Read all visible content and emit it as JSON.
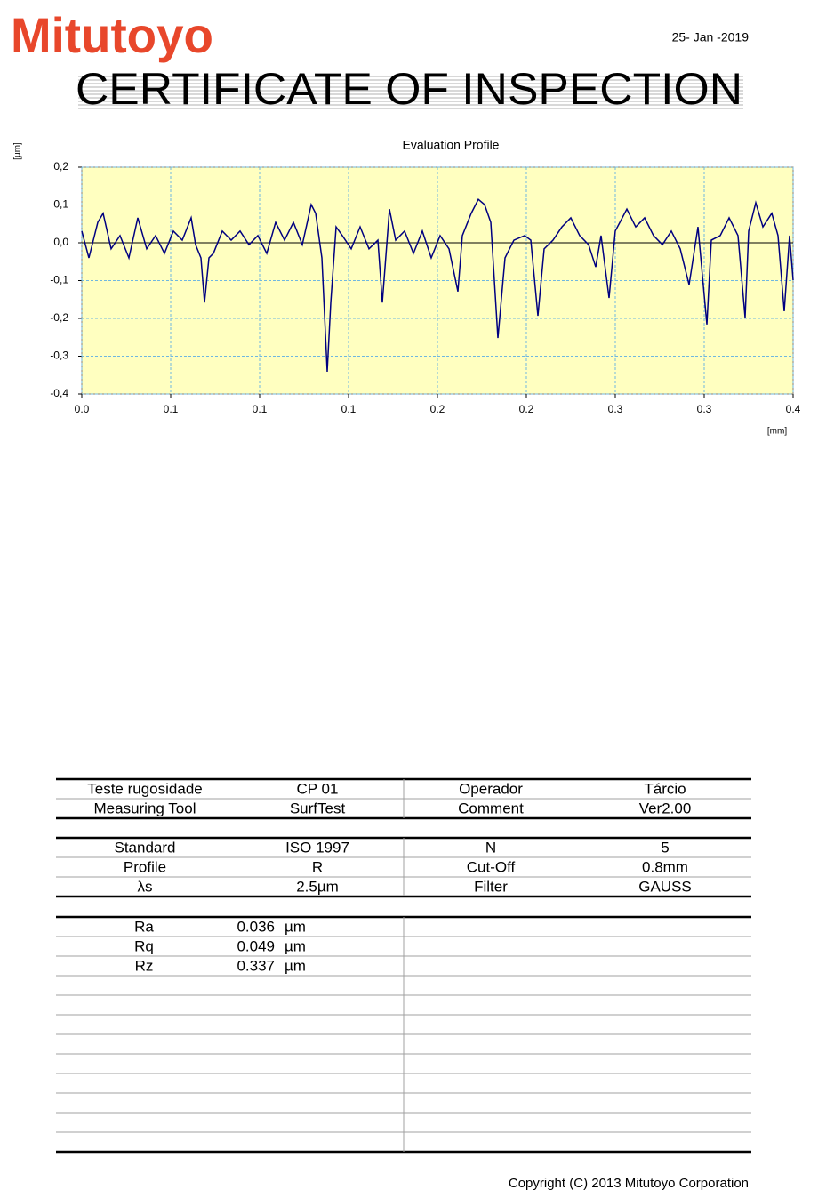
{
  "header": {
    "logo": "Mitutoyo",
    "date": "25- Jan -2019",
    "title": "CERTIFICATE OF INSPECTION"
  },
  "chart_data": {
    "type": "line",
    "title": "Evaluation Profile",
    "y_label": "[µm]",
    "x_label": "[mm]",
    "color": "#000080",
    "background": "#ffffc0",
    "grid": true,
    "xlim": [
      0,
      0.4
    ],
    "ylim": [
      -0.4,
      0.2
    ],
    "xticks": [
      {
        "value": 0,
        "label": "0.0"
      },
      {
        "value": 0.05,
        "label": "0.1"
      },
      0.1,
      {
        "value": 0.15,
        "label": "0.1"
      },
      0.2,
      {
        "value": 0.25,
        "label": "0.2"
      },
      0.3,
      {
        "value": 0.35,
        "label": "0.3"
      },
      0.4
    ],
    "yticks": [
      {
        "value": 0.2,
        "label": "0,2"
      },
      {
        "value": 0.1,
        "label": "0,1"
      },
      {
        "value": 0,
        "label": "0,0"
      },
      {
        "value": -0.1,
        "label": "-0,1"
      },
      {
        "value": -0.2,
        "label": "-0,2"
      },
      {
        "value": -0.3,
        "label": "-0,3"
      },
      {
        "value": -0.4,
        "label": "-0,4"
      }
    ],
    "x": [
      0,
      0.004,
      0.009,
      0.012,
      0.0165,
      0.0215,
      0.0265,
      0.0315,
      0.0365,
      0.0415,
      0.0465,
      0.0515,
      0.0565,
      0.0615,
      0.064,
      0.067,
      0.069,
      0.0715,
      0.074,
      0.079,
      0.084,
      0.089,
      0.094,
      0.099,
      0.104,
      0.109,
      0.114,
      0.119,
      0.124,
      0.129,
      0.1315,
      0.135,
      0.138,
      0.14,
      0.143,
      0.1465,
      0.1515,
      0.1565,
      0.1615,
      0.1665,
      0.169,
      0.173,
      0.1765,
      0.1815,
      0.1865,
      0.1915,
      0.1965,
      0.2015,
      0.2065,
      0.2115,
      0.214,
      0.219,
      0.223,
      0.2265,
      0.23,
      0.234,
      0.238,
      0.243,
      0.249,
      0.2525,
      0.2565,
      0.26,
      0.265,
      0.27,
      0.275,
      0.28,
      0.285,
      0.289,
      0.292,
      0.2965,
      0.3,
      0.3065,
      0.3115,
      0.3165,
      0.3215,
      0.3265,
      0.3315,
      0.3365,
      0.3415,
      0.3465,
      0.3515,
      0.354,
      0.359,
      0.364,
      0.369,
      0.373,
      0.375,
      0.379,
      0.383,
      0.388,
      0.3915,
      0.395,
      0.398,
      0.4
    ],
    "values": [
      0.031,
      -0.04,
      0.054,
      0.078,
      -0.016,
      0.019,
      -0.04,
      0.066,
      -0.016,
      0.019,
      -0.028,
      0.031,
      0.007,
      0.066,
      -0.005,
      -0.04,
      -0.158,
      -0.04,
      -0.028,
      0.031,
      0.007,
      0.031,
      -0.005,
      0.019,
      -0.028,
      0.054,
      0.007,
      0.054,
      -0.005,
      0.101,
      0.078,
      -0.04,
      -0.341,
      -0.158,
      0.042,
      0.019,
      -0.016,
      0.042,
      -0.016,
      0.007,
      -0.158,
      0.089,
      0.007,
      0.031,
      -0.028,
      0.031,
      -0.04,
      0.019,
      -0.016,
      -0.129,
      0.019,
      0.078,
      0.115,
      0.101,
      0.054,
      -0.252,
      -0.04,
      0.007,
      0.019,
      0.007,
      -0.193,
      -0.016,
      0.007,
      0.042,
      0.066,
      0.019,
      -0.005,
      -0.064,
      0.019,
      -0.146,
      0.031,
      0.089,
      0.042,
      0.066,
      0.019,
      -0.005,
      0.031,
      -0.016,
      -0.111,
      0.042,
      -0.216,
      0.007,
      0.019,
      0.066,
      0.019,
      -0.198,
      0.031,
      0.106,
      0.042,
      0.078,
      0.019,
      -0.181,
      0.019,
      -0.099
    ]
  },
  "info_table": {
    "rows": [
      [
        "Teste rugosidade",
        "CP 01",
        "Operador",
        "Tárcio"
      ],
      [
        "Measuring Tool",
        "SurfTest",
        "Comment",
        "Ver2.00"
      ]
    ]
  },
  "conditions_table": {
    "rows": [
      [
        "Standard",
        "ISO 1997",
        "N",
        "5"
      ],
      [
        "Profile",
        "R",
        "Cut-Off",
        "0.8mm"
      ],
      [
        "λs",
        "2.5µm",
        "Filter",
        "GAUSS"
      ]
    ]
  },
  "results_table": {
    "rows": [
      {
        "name": "Ra",
        "value": 0.036,
        "unit": "µm"
      },
      {
        "name": "Rq",
        "value": 0.049,
        "unit": "µm"
      },
      {
        "name": "Rz",
        "value": 0.337,
        "unit": "µm"
      }
    ]
  },
  "footer": {
    "copyright": "Copyright (C) 2013 Mitutoyo Corporation"
  }
}
